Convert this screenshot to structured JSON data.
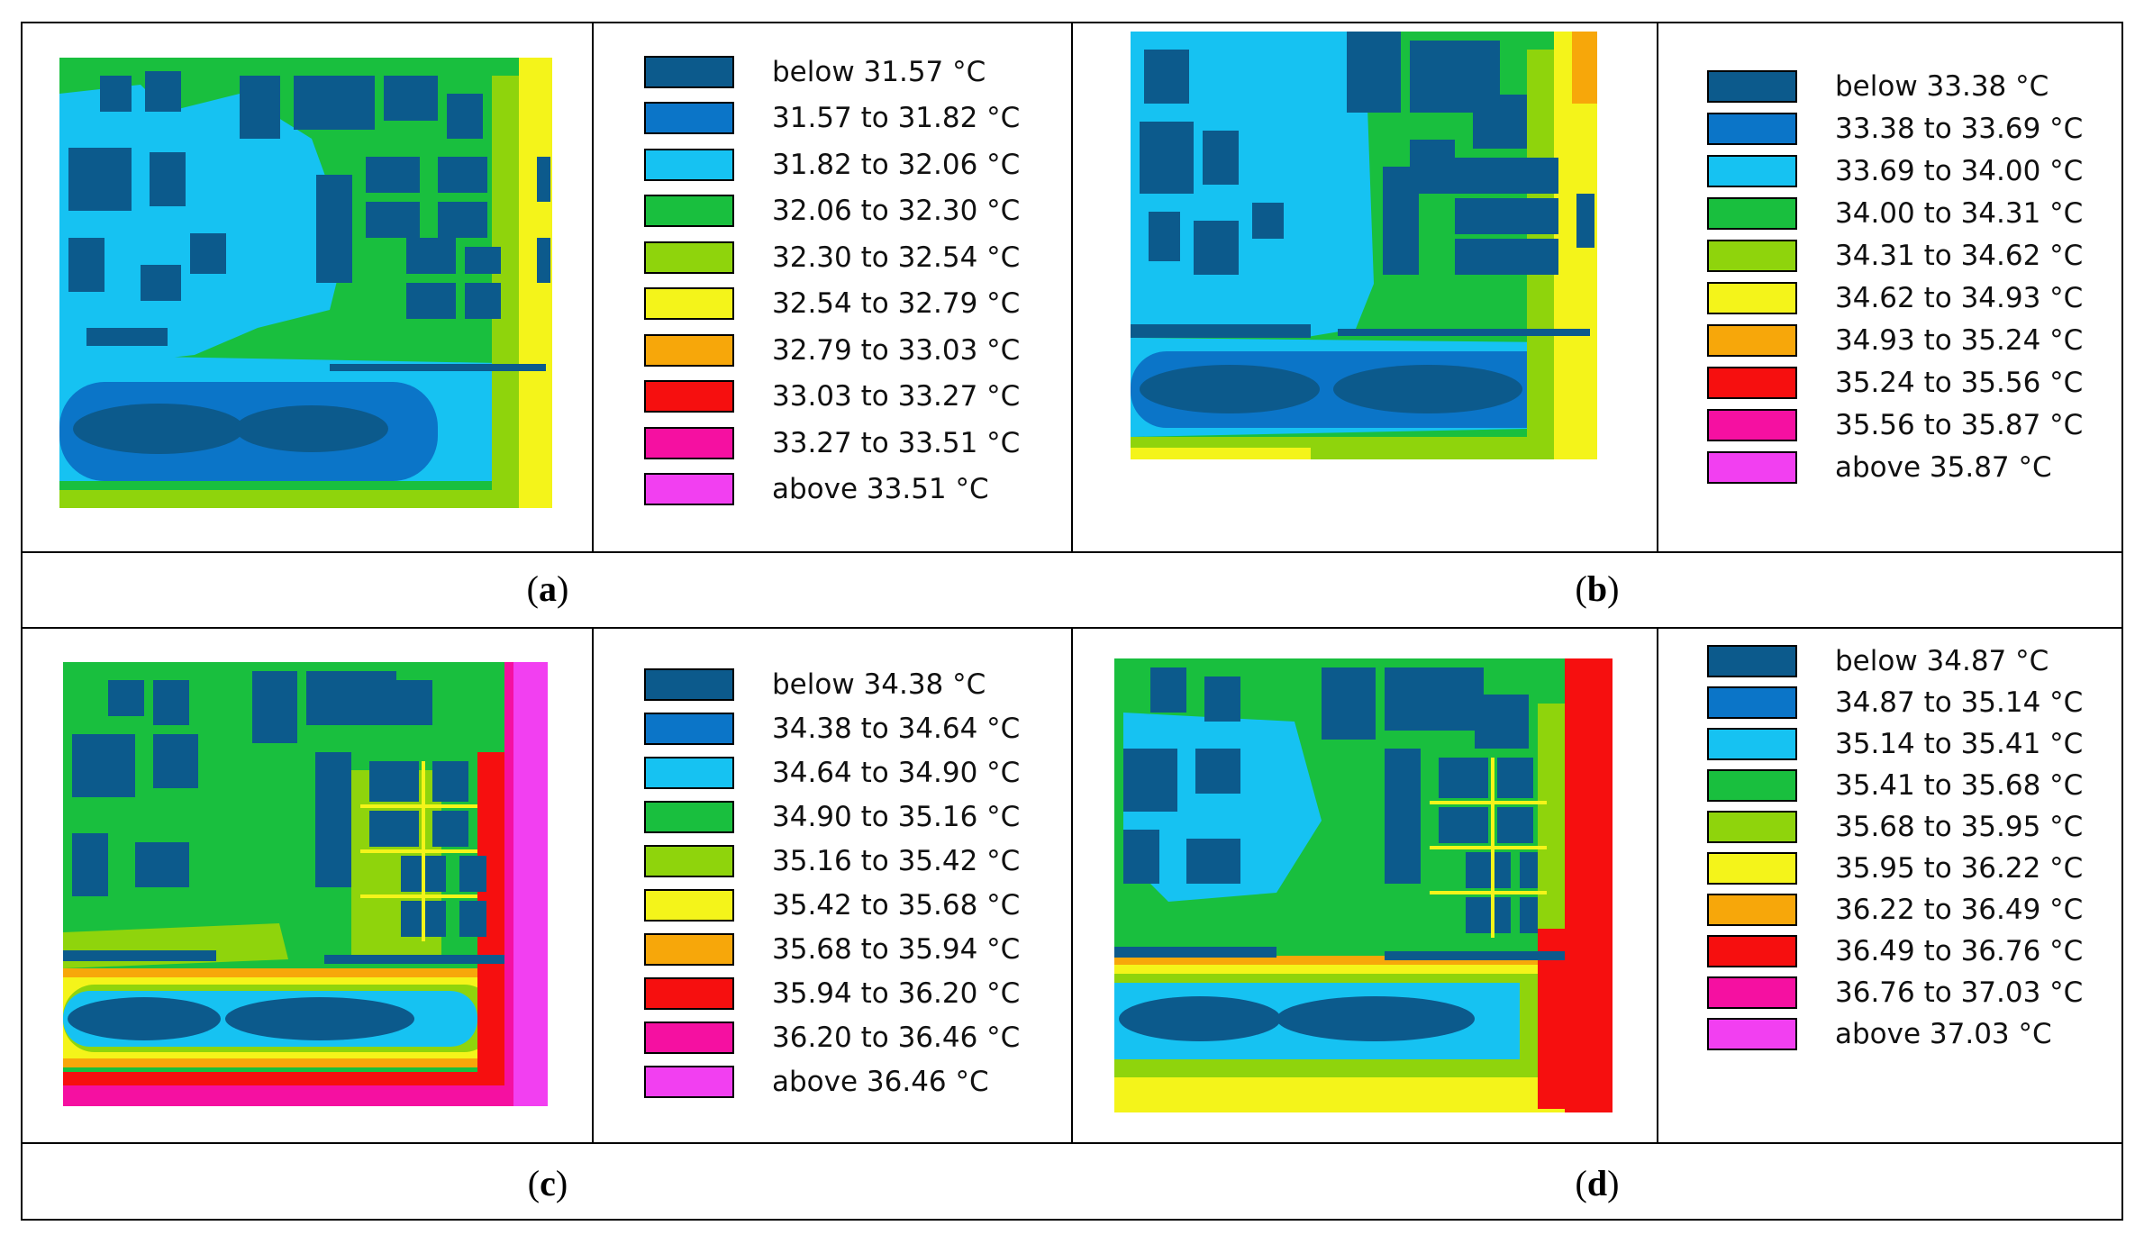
{
  "panels": [
    {
      "id": "a",
      "caption": "a",
      "legend": [
        {
          "label": "below 31.57 °C",
          "color": "#0c5a8c"
        },
        {
          "label": "31.57 to 31.82 °C",
          "color": "#0b75c8"
        },
        {
          "label": "31.82 to 32.06 °C",
          "color": "#16c2f2"
        },
        {
          "label": "32.06 to 32.30 °C",
          "color": "#19bf3e"
        },
        {
          "label": "32.30 to 32.54 °C",
          "color": "#8fd40c"
        },
        {
          "label": "32.54 to 32.79 °C",
          "color": "#f4f41a"
        },
        {
          "label": "32.79 to 33.03 °C",
          "color": "#f7a70a"
        },
        {
          "label": "33.03 to 33.27 °C",
          "color": "#f60f0f"
        },
        {
          "label": "33.27 to 33.51 °C",
          "color": "#f510a1"
        },
        {
          "label": "above 33.51 °C",
          "color": "#f23ff1"
        }
      ]
    },
    {
      "id": "b",
      "caption": "b",
      "legend": [
        {
          "label": "below 33.38 °C",
          "color": "#0c5a8c"
        },
        {
          "label": "33.38 to 33.69 °C",
          "color": "#0b75c8"
        },
        {
          "label": "33.69 to 34.00 °C",
          "color": "#16c2f2"
        },
        {
          "label": "34.00 to 34.31 °C",
          "color": "#19bf3e"
        },
        {
          "label": "34.31 to 34.62 °C",
          "color": "#8fd40c"
        },
        {
          "label": "34.62 to 34.93 °C",
          "color": "#f4f41a"
        },
        {
          "label": "34.93 to 35.24 °C",
          "color": "#f7a70a"
        },
        {
          "label": "35.24 to 35.56 °C",
          "color": "#f60f0f"
        },
        {
          "label": "35.56 to 35.87 °C",
          "color": "#f510a1"
        },
        {
          "label": "above 35.87 °C",
          "color": "#f23ff1"
        }
      ]
    },
    {
      "id": "c",
      "caption": "c",
      "legend": [
        {
          "label": "below 34.38 °C",
          "color": "#0c5a8c"
        },
        {
          "label": "34.38 to 34.64 °C",
          "color": "#0b75c8"
        },
        {
          "label": "34.64 to 34.90 °C",
          "color": "#16c2f2"
        },
        {
          "label": "34.90 to 35.16 °C",
          "color": "#19bf3e"
        },
        {
          "label": "35.16 to 35.42 °C",
          "color": "#8fd40c"
        },
        {
          "label": "35.42 to 35.68 °C",
          "color": "#f4f41a"
        },
        {
          "label": "35.68 to 35.94 °C",
          "color": "#f7a70a"
        },
        {
          "label": "35.94 to 36.20 °C",
          "color": "#f60f0f"
        },
        {
          "label": "36.20 to 36.46 °C",
          "color": "#f510a1"
        },
        {
          "label": "above 36.46 °C",
          "color": "#f23ff1"
        }
      ]
    },
    {
      "id": "d",
      "caption": "d",
      "legend": [
        {
          "label": "below 34.87 °C",
          "color": "#0c5a8c"
        },
        {
          "label": "34.87 to 35.14 °C",
          "color": "#0b75c8"
        },
        {
          "label": "35.14 to 35.41 °C",
          "color": "#16c2f2"
        },
        {
          "label": "35.41 to 35.68 °C",
          "color": "#19bf3e"
        },
        {
          "label": "35.68 to 35.95 °C",
          "color": "#8fd40c"
        },
        {
          "label": "35.95 to 36.22 °C",
          "color": "#f4f41a"
        },
        {
          "label": "36.22 to 36.49 °C",
          "color": "#f7a70a"
        },
        {
          "label": "36.49 to 36.76 °C",
          "color": "#f60f0f"
        },
        {
          "label": "36.76 to 37.03 °C",
          "color": "#f510a1"
        },
        {
          "label": "above 37.03 °C",
          "color": "#f23ff1"
        }
      ]
    }
  ]
}
